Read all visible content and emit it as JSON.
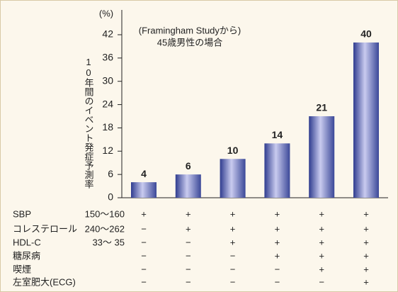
{
  "chart_data": {
    "type": "bar",
    "unit_label": "(%)",
    "ylabel": "10年間のイベント発症予測率",
    "annotation": [
      "(Framingham Studyから)",
      "45歳男性の場合"
    ],
    "categories": [
      null,
      null,
      null,
      null,
      null,
      null
    ],
    "values": [
      4,
      6,
      10,
      14,
      21,
      40
    ],
    "color": "#3d4c9e",
    "ylim": [
      0,
      42
    ],
    "yticks": [
      0,
      6,
      12,
      18,
      24,
      30,
      36,
      42
    ]
  },
  "risk_table": {
    "rows": [
      {
        "label": "SBP",
        "range": "150〜160",
        "marks": [
          "+",
          "+",
          "+",
          "+",
          "+",
          "+"
        ]
      },
      {
        "label": "コレステロール",
        "range": "240〜262",
        "marks": [
          "−",
          "+",
          "+",
          "+",
          "+",
          "+"
        ]
      },
      {
        "label": "HDL-C",
        "range": "33〜 35",
        "marks": [
          "−",
          "−",
          "+",
          "+",
          "+",
          "+"
        ]
      },
      {
        "label": "糖尿病",
        "range": null,
        "marks": [
          "−",
          "−",
          "−",
          "+",
          "+",
          "+"
        ]
      },
      {
        "label": "喫煙",
        "range": null,
        "marks": [
          "−",
          "−",
          "−",
          "−",
          "+",
          "+"
        ]
      },
      {
        "label": "左室肥大(ECG)",
        "range": null,
        "marks": [
          "−",
          "−",
          "−",
          "−",
          "−",
          "+"
        ]
      }
    ]
  }
}
